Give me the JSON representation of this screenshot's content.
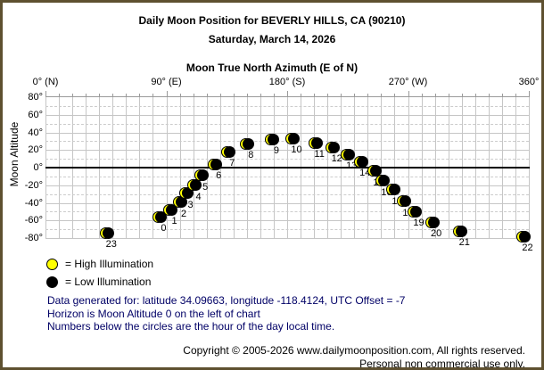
{
  "header": {
    "title": "Daily Moon Position for BEVERLY HILLS, CA (90210)",
    "date": "Saturday, March 14, 2026"
  },
  "chart_data": {
    "type": "scatter",
    "title": "Moon True North Azimuth (E of N)",
    "xlabel": "Moon True North Azimuth (E of N)",
    "ylabel": "Moon Altitude",
    "xlim": [
      0,
      360
    ],
    "ylim": [
      -80,
      80
    ],
    "x_major_ticks": [
      {
        "az": 0,
        "label": "0° (N)"
      },
      {
        "az": 90,
        "label": "90° (E)"
      },
      {
        "az": 180,
        "label": "180° (S)"
      },
      {
        "az": 270,
        "label": "270° (W)"
      },
      {
        "az": 360,
        "label": "360°"
      }
    ],
    "x_minor_step": 10,
    "y_tick_step": 20,
    "y_grid_minor_step": 10,
    "horizon_altitude": 0,
    "grid": true,
    "points": [
      {
        "hour": 0,
        "azimuth": 86,
        "altitude": -56
      },
      {
        "hour": 1,
        "azimuth": 94,
        "altitude": -48
      },
      {
        "hour": 2,
        "azimuth": 101,
        "altitude": -39
      },
      {
        "hour": 3,
        "azimuth": 106,
        "altitude": -29
      },
      {
        "hour": 4,
        "azimuth": 112,
        "altitude": -20
      },
      {
        "hour": 5,
        "azimuth": 117,
        "altitude": -9
      },
      {
        "hour": 6,
        "azimuth": 127,
        "altitude": 4
      },
      {
        "hour": 7,
        "azimuth": 137,
        "altitude": 18
      },
      {
        "hour": 8,
        "azimuth": 151,
        "altitude": 27
      },
      {
        "hour": 9,
        "azimuth": 170,
        "altitude": 32
      },
      {
        "hour": 10,
        "azimuth": 185,
        "altitude": 33
      },
      {
        "hour": 11,
        "azimuth": 202,
        "altitude": 28
      },
      {
        "hour": 12,
        "azimuth": 215,
        "altitude": 23
      },
      {
        "hour": 13,
        "azimuth": 226,
        "altitude": 15
      },
      {
        "hour": 14,
        "azimuth": 236,
        "altitude": 7
      },
      {
        "hour": 15,
        "azimuth": 246,
        "altitude": -4
      },
      {
        "hour": 16,
        "azimuth": 252,
        "altitude": -15
      },
      {
        "hour": 17,
        "azimuth": 260,
        "altitude": -25
      },
      {
        "hour": 18,
        "azimuth": 268,
        "altitude": -38
      },
      {
        "hour": 19,
        "azimuth": 276,
        "altitude": -50
      },
      {
        "hour": 20,
        "azimuth": 289,
        "altitude": -62
      },
      {
        "hour": 21,
        "azimuth": 310,
        "altitude": -72
      },
      {
        "hour": 22,
        "azimuth": 357,
        "altitude": -78
      },
      {
        "hour": 23,
        "azimuth": 47,
        "altitude": -74
      }
    ]
  },
  "legend": {
    "items": [
      {
        "icon": "moon-high-illumination-swatch",
        "color": "#ffff00",
        "label": "= High Illumination"
      },
      {
        "icon": "moon-low-illumination-swatch",
        "color": "#000000",
        "label": "= Low Illumination"
      }
    ]
  },
  "notes": {
    "line1": "Data generated for: latitude 34.09663, longitude -118.4124, UTC Offset = -7",
    "line2": "Horizon is Moon Altitude 0 on the left of chart",
    "line3": "Numbers below the circles are the hour of the day local time."
  },
  "footer": {
    "line1": "Copyright © 2005-2026 www.dailymoonposition.com, All rights reserved.",
    "line2": "Personal non commercial use only."
  },
  "colors": {
    "page_border": "#5e5030",
    "grid_solid": "#c6c6c6",
    "grid_dashed": "#cccccc",
    "axis_line": "#9a9a9a",
    "horizon": "#000000",
    "moon_high": "#ffff00",
    "moon_low": "#000000",
    "notes_text": "#000066"
  }
}
